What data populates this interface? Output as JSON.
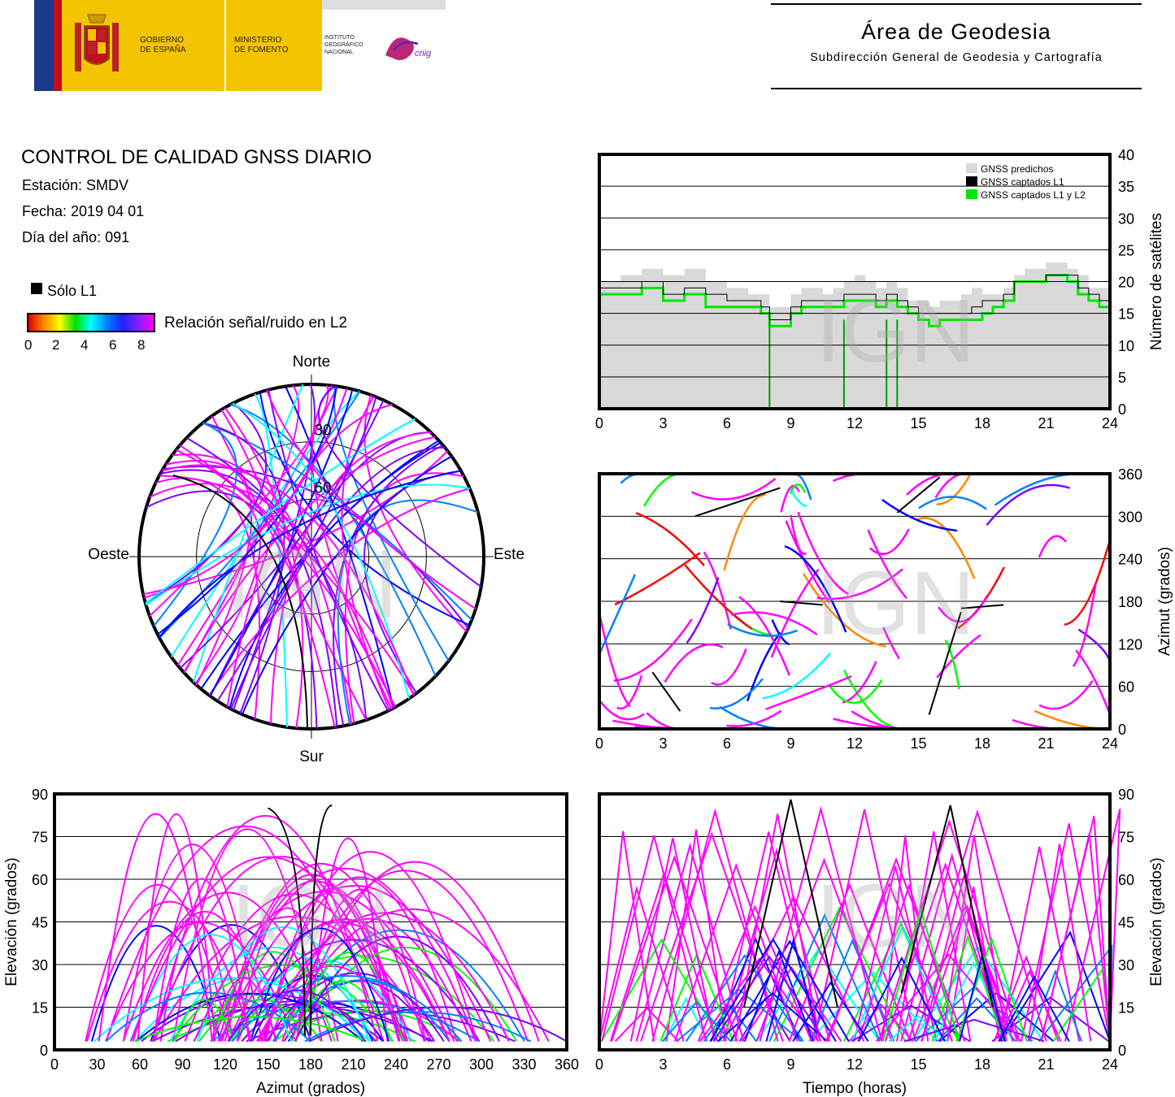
{
  "header": {
    "gov_line1": "GOBIERNO",
    "gov_line2": "DE ESPAÑA",
    "min_line1": "MINISTERIO",
    "min_line2": "DE FOMENTO",
    "inst_line1": "INSTITUTO",
    "inst_line2": "GEOGRÁFICO",
    "inst_line3": "NACIONAL",
    "logo_text": "cnig",
    "area_title": "Área de Geodesia",
    "area_subtitle": "Subdirección General de Geodesia y Cartografía"
  },
  "info": {
    "title": "CONTROL DE CALIDAD GNSS DIARIO",
    "station": "Estación: SMDV",
    "date": "Fecha: 2019 04 01",
    "doy": "Día del año: 091"
  },
  "legend": {
    "only_l1": "Sólo L1",
    "snr_label": "Relación señal/ruido en L2",
    "snr_ticks": [
      "0",
      "2",
      "4",
      "6",
      "8"
    ]
  },
  "watermark": "IGN",
  "colors": {
    "l1_only": "#000000",
    "predicted": "#d9d9d9",
    "captured_l1_l2": "#00e600",
    "snr_scale": [
      "#ff0000",
      "#ff8800",
      "#ffff00",
      "#00ff00",
      "#00ffff",
      "#0080ff",
      "#0000ff",
      "#8000ff",
      "#ff00ff"
    ]
  },
  "chart_data": [
    {
      "id": "sat_count",
      "type": "area",
      "ylabel": "Número de satélites",
      "x_ticks": [
        "0",
        "3",
        "6",
        "9",
        "12",
        "15",
        "18",
        "21",
        "24"
      ],
      "y_ticks": [
        "0",
        "5",
        "10",
        "15",
        "20",
        "25",
        "30",
        "35",
        "40"
      ],
      "xlim": [
        0,
        24
      ],
      "ylim": [
        0,
        40
      ],
      "legend_position": "top-right",
      "series": [
        {
          "name": "GNSS predichos",
          "x": [
            0,
            1,
            2,
            3,
            4,
            5,
            6,
            7,
            7.6,
            8,
            8.5,
            9,
            9.5,
            10,
            10.5,
            11,
            11.5,
            12,
            12.5,
            13,
            13.5,
            14,
            14.5,
            15,
            15.5,
            16,
            16.5,
            17,
            17.5,
            18,
            18.5,
            19,
            19.5,
            20,
            20.5,
            21,
            21.5,
            22,
            22.5,
            23,
            23.5,
            24
          ],
          "values": [
            20,
            21,
            22,
            21,
            22,
            20,
            19,
            18,
            18,
            16,
            16,
            18,
            19,
            19,
            18,
            19,
            20,
            21,
            20,
            19,
            20,
            19,
            17,
            17,
            16,
            17,
            17,
            18,
            19,
            18,
            18,
            19,
            21,
            22,
            22,
            23,
            23,
            22,
            21,
            19,
            19,
            20
          ]
        },
        {
          "name": "GNSS captados L1",
          "x": [
            0,
            1,
            2,
            3,
            4,
            5,
            6,
            7,
            7.6,
            8,
            8.5,
            9,
            9.5,
            10,
            10.5,
            11,
            11.5,
            12,
            12.5,
            13,
            13.5,
            14,
            14.5,
            15,
            15.5,
            16,
            16.5,
            17,
            17.5,
            18,
            18.5,
            19,
            19.5,
            20,
            20.5,
            21,
            21.5,
            22,
            22.5,
            23,
            23.5,
            24
          ],
          "values": [
            19,
            19,
            20,
            18,
            19,
            18,
            17,
            17,
            16,
            14,
            14,
            16,
            17,
            17,
            17,
            17,
            18,
            18,
            18,
            17,
            18,
            17,
            16,
            15,
            15,
            15,
            15,
            15,
            16,
            17,
            17,
            18,
            20,
            20,
            20,
            21,
            21,
            21,
            19,
            18,
            17,
            18
          ]
        },
        {
          "name": "GNSS captados L1 y L2",
          "x": [
            0,
            1,
            2,
            3,
            4,
            5,
            6,
            7,
            7.6,
            8,
            8.5,
            9,
            9.5,
            10,
            10.5,
            11,
            11.5,
            12,
            12.5,
            13,
            13.5,
            14,
            14.5,
            15,
            15.5,
            16,
            16.5,
            17,
            17.5,
            18,
            18.5,
            19,
            19.5,
            20,
            20.5,
            21,
            21.5,
            22,
            22.5,
            23,
            23.5,
            24
          ],
          "values": [
            18,
            18,
            19,
            17,
            18,
            16,
            16,
            16,
            15,
            13,
            13,
            15,
            16,
            16,
            16,
            16,
            17,
            17,
            17,
            16,
            17,
            16,
            15,
            14,
            13,
            14,
            14,
            14,
            14,
            15,
            16,
            17,
            20,
            20,
            20,
            21,
            21,
            20,
            18,
            17,
            16,
            17
          ]
        }
      ]
    },
    {
      "id": "azimuth_time",
      "type": "scatter",
      "ylabel": "Azimut (grados)",
      "x_ticks": [
        "0",
        "3",
        "6",
        "9",
        "12",
        "15",
        "18",
        "21",
        "24"
      ],
      "y_ticks": [
        "0",
        "60",
        "120",
        "180",
        "240",
        "300",
        "360"
      ],
      "xlim": [
        0,
        24
      ],
      "ylim": [
        0,
        360
      ],
      "grid": true
    },
    {
      "id": "skyplot",
      "type": "scatter",
      "labels": {
        "north": "Norte",
        "south": "Sur",
        "east": "Este",
        "west": "Oeste"
      },
      "rings": [
        "30",
        "60"
      ]
    },
    {
      "id": "elev_azimuth",
      "type": "scatter",
      "xlabel": "Azimut (grados)",
      "ylabel": "Elevación (grados)",
      "x_ticks": [
        "0",
        "30",
        "60",
        "90",
        "120",
        "150",
        "180",
        "210",
        "240",
        "270",
        "300",
        "330",
        "360"
      ],
      "y_ticks": [
        "0",
        "15",
        "30",
        "45",
        "60",
        "75",
        "90"
      ],
      "xlim": [
        0,
        360
      ],
      "ylim": [
        0,
        90
      ],
      "grid": true
    },
    {
      "id": "elev_time",
      "type": "scatter",
      "xlabel": "Tiempo (horas)",
      "ylabel": "Elevación (grados)",
      "x_ticks": [
        "0",
        "3",
        "6",
        "9",
        "12",
        "15",
        "18",
        "21",
        "24"
      ],
      "y_ticks": [
        "0",
        "15",
        "30",
        "45",
        "60",
        "75",
        "90"
      ],
      "xlim": [
        0,
        24
      ],
      "ylim": [
        0,
        90
      ],
      "grid": true
    }
  ]
}
